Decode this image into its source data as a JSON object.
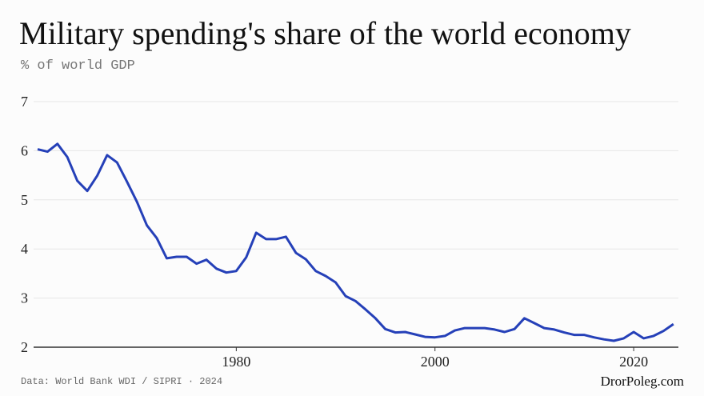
{
  "chart_data": {
    "type": "line",
    "title": "Military spending's share of the world economy",
    "subtitle": "% of world GDP",
    "source": "Data: World Bank WDI / SIPRI · 2024",
    "credit": "DrorPoleg.com",
    "x": [
      1960,
      1961,
      1962,
      1963,
      1964,
      1965,
      1966,
      1967,
      1968,
      1969,
      1970,
      1971,
      1972,
      1973,
      1974,
      1975,
      1976,
      1977,
      1978,
      1979,
      1980,
      1981,
      1982,
      1983,
      1984,
      1985,
      1986,
      1987,
      1988,
      1989,
      1990,
      1991,
      1992,
      1993,
      1994,
      1995,
      1996,
      1997,
      1998,
      1999,
      2000,
      2001,
      2002,
      2003,
      2004,
      2005,
      2006,
      2007,
      2008,
      2009,
      2010,
      2011,
      2012,
      2013,
      2014,
      2015,
      2016,
      2017,
      2018,
      2019,
      2020,
      2021,
      2022,
      2023,
      2024
    ],
    "series": [
      {
        "color": "#2540b8",
        "values": [
          6.03,
          5.98,
          6.14,
          5.87,
          5.39,
          5.18,
          5.49,
          5.91,
          5.76,
          5.37,
          4.96,
          4.48,
          4.22,
          3.81,
          3.84,
          3.84,
          3.7,
          3.78,
          3.6,
          3.52,
          3.55,
          3.83,
          4.33,
          4.2,
          4.2,
          4.25,
          3.92,
          3.79,
          3.55,
          3.45,
          3.32,
          3.04,
          2.94,
          2.77,
          2.59,
          2.37,
          2.3,
          2.31,
          2.26,
          2.21,
          2.2,
          2.23,
          2.34,
          2.39,
          2.39,
          2.39,
          2.36,
          2.31,
          2.37,
          2.59,
          2.49,
          2.39,
          2.36,
          2.3,
          2.25,
          2.25,
          2.2,
          2.16,
          2.13,
          2.18,
          2.31,
          2.18,
          2.23,
          2.33,
          2.47
        ]
      }
    ],
    "xlim": [
      1959.6,
      2024.5
    ],
    "xticks": [
      1980,
      2000,
      2020
    ],
    "ylim": [
      2,
      7
    ],
    "yticks": [
      2,
      3,
      4,
      5,
      6,
      7
    ],
    "grid": true
  }
}
